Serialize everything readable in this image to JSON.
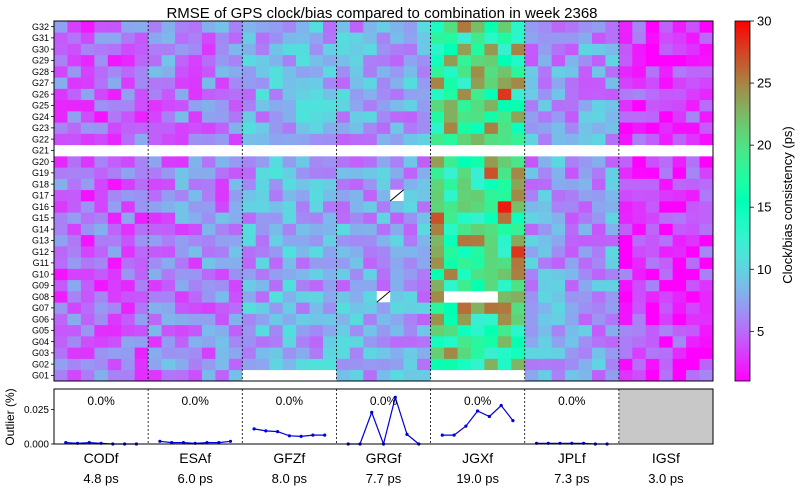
{
  "chart_data": [
    {
      "type": "heatmap",
      "title": "RMSE of GPS clock/bias compared to combination in week 2368",
      "categories": [
        "CODf",
        "ESAf",
        "GFZf",
        "GRGf",
        "JGXf",
        "JPLf",
        "IGSf"
      ],
      "satellites": [
        "G01",
        "G02",
        "G03",
        "G04",
        "G05",
        "G06",
        "G07",
        "G08",
        "G09",
        "G10",
        "G11",
        "G12",
        "G13",
        "G14",
        "G15",
        "G16",
        "G17",
        "G18",
        "G19",
        "G20",
        "G21",
        "G22",
        "G23",
        "G24",
        "G25",
        "G26",
        "G27",
        "G28",
        "G29",
        "G30",
        "G31",
        "G32"
      ],
      "days_per_center": 7,
      "center_base": [
        4.8,
        6.0,
        8.0,
        7.7,
        19.0,
        7.3,
        3.0
      ],
      "hot_cells": [
        {
          "center": "JGXf",
          "sat": "G26",
          "day": 6,
          "value": 28
        },
        {
          "center": "JGXf",
          "sat": "G19",
          "day": 5,
          "value": 27
        },
        {
          "center": "JGXf",
          "sat": "G16",
          "day": 6,
          "value": 29
        },
        {
          "center": "JGXf",
          "sat": "G12",
          "day": 7,
          "value": 28
        },
        {
          "center": "JGXf",
          "sat": "G15",
          "day": 1,
          "value": 27
        }
      ],
      "missing_sats": [
        "G21"
      ],
      "missing_cells": [
        {
          "center": "GFZf",
          "sat": "G01"
        },
        {
          "center": "JGXf",
          "sat": "G01"
        },
        {
          "center": "JGXf",
          "sat": "G08",
          "days": [
            2,
            3,
            4,
            5
          ]
        }
      ],
      "hatched_cells": [
        {
          "center": "GRGf",
          "sat": "G17",
          "day": 5
        },
        {
          "center": "GRGf",
          "sat": "G08",
          "day": 4
        }
      ],
      "colorbar": {
        "label": "Clock/bias consistency (ps)",
        "ticks": [
          5,
          10,
          15,
          20,
          25,
          30
        ],
        "range": [
          1,
          30
        ]
      }
    },
    {
      "type": "line",
      "ylabel": "Outlier (%)",
      "yticks": [
        "0.000",
        "0.025"
      ],
      "ylim": [
        0,
        0.04
      ],
      "series": [
        {
          "name": "CODf",
          "values": [
            0.001,
            0.0005,
            0.001,
            0.0005,
            0.0,
            0.0,
            0.0
          ],
          "pct_label": "0.0%"
        },
        {
          "name": "ESAf",
          "values": [
            0.002,
            0.001,
            0.001,
            0.0005,
            0.001,
            0.001,
            0.002
          ],
          "pct_label": "0.0%"
        },
        {
          "name": "GFZf",
          "values": [
            0.011,
            0.0095,
            0.009,
            0.006,
            0.0055,
            0.0065,
            0.0065
          ],
          "pct_label": "0.0%"
        },
        {
          "name": "GRGf",
          "values": [
            0.0,
            0.0,
            0.023,
            0.0,
            0.034,
            0.007,
            0.0
          ],
          "pct_label": "0.0%"
        },
        {
          "name": "JGXf",
          "values": [
            0.0065,
            0.0065,
            0.013,
            0.024,
            0.02,
            0.028,
            0.017
          ],
          "pct_label": "0.0%"
        },
        {
          "name": "JPLf",
          "values": [
            0.0005,
            0.0005,
            0.0005,
            0.0005,
            0.0005,
            0.0,
            0.0
          ],
          "pct_label": "0.0%"
        },
        {
          "name": "IGSf",
          "values": [],
          "pct_label": ""
        }
      ],
      "xlabels": [
        "CODf",
        "ESAf",
        "GFZf",
        "GRGf",
        "JGXf",
        "JPLf",
        "IGSf"
      ],
      "summary_labels": [
        "4.8 ps",
        "6.0 ps",
        "8.0 ps",
        "7.7 ps",
        "19.0 ps",
        "7.3 ps",
        "3.0 ps"
      ]
    }
  ]
}
